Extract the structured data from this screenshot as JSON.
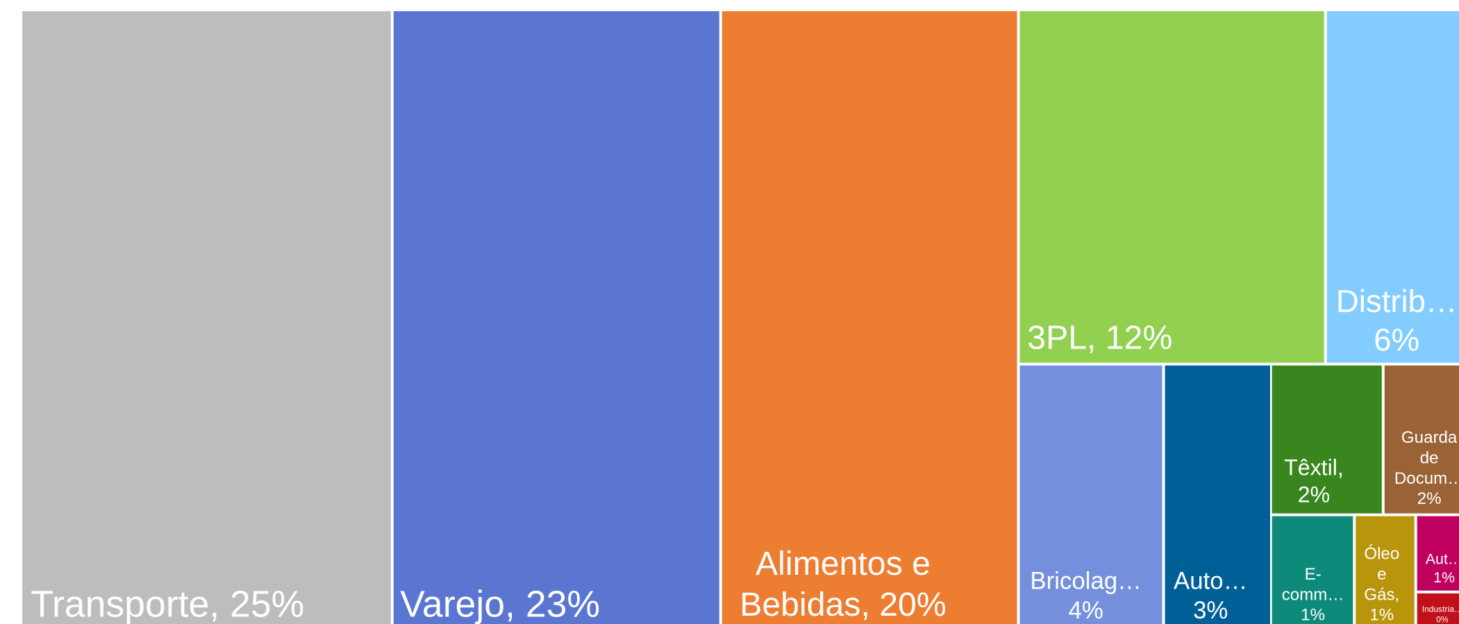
{
  "chart_data": {
    "type": "treemap",
    "values": [
      25,
      23,
      20,
      12,
      6,
      4,
      3,
      2,
      2,
      1,
      1,
      1,
      0
    ],
    "value_labels": [
      [
        "Transporte, 25%"
      ],
      [
        "Varejo, 23%"
      ],
      [
        "Alimentos e",
        "Bebidas, 20%"
      ],
      [
        "3PL, 12%"
      ],
      [
        "Distrib…",
        "6%"
      ],
      [
        "Bricolag…",
        "4%"
      ],
      [
        "Auto…",
        "3%"
      ],
      [
        "Têxtil,",
        "2%"
      ],
      [
        "Guarda",
        "de",
        "Docum…",
        "2%"
      ],
      [
        "E-",
        "comm…",
        "1%"
      ],
      [
        "Óleo",
        "e",
        "Gás,",
        "1%"
      ],
      [
        "Aut…",
        "1%"
      ],
      [
        "Industria…",
        "0%"
      ]
    ],
    "colors": [
      "#bdbdbd",
      "#5a76d0",
      "#ed7d31",
      "#92d050",
      "#82ccff",
      "#7490dd",
      "#005f96",
      "#38861d",
      "#9a6335",
      "#0e8a7a",
      "#b8950a",
      "#c0005e",
      "#c0101a"
    ]
  }
}
